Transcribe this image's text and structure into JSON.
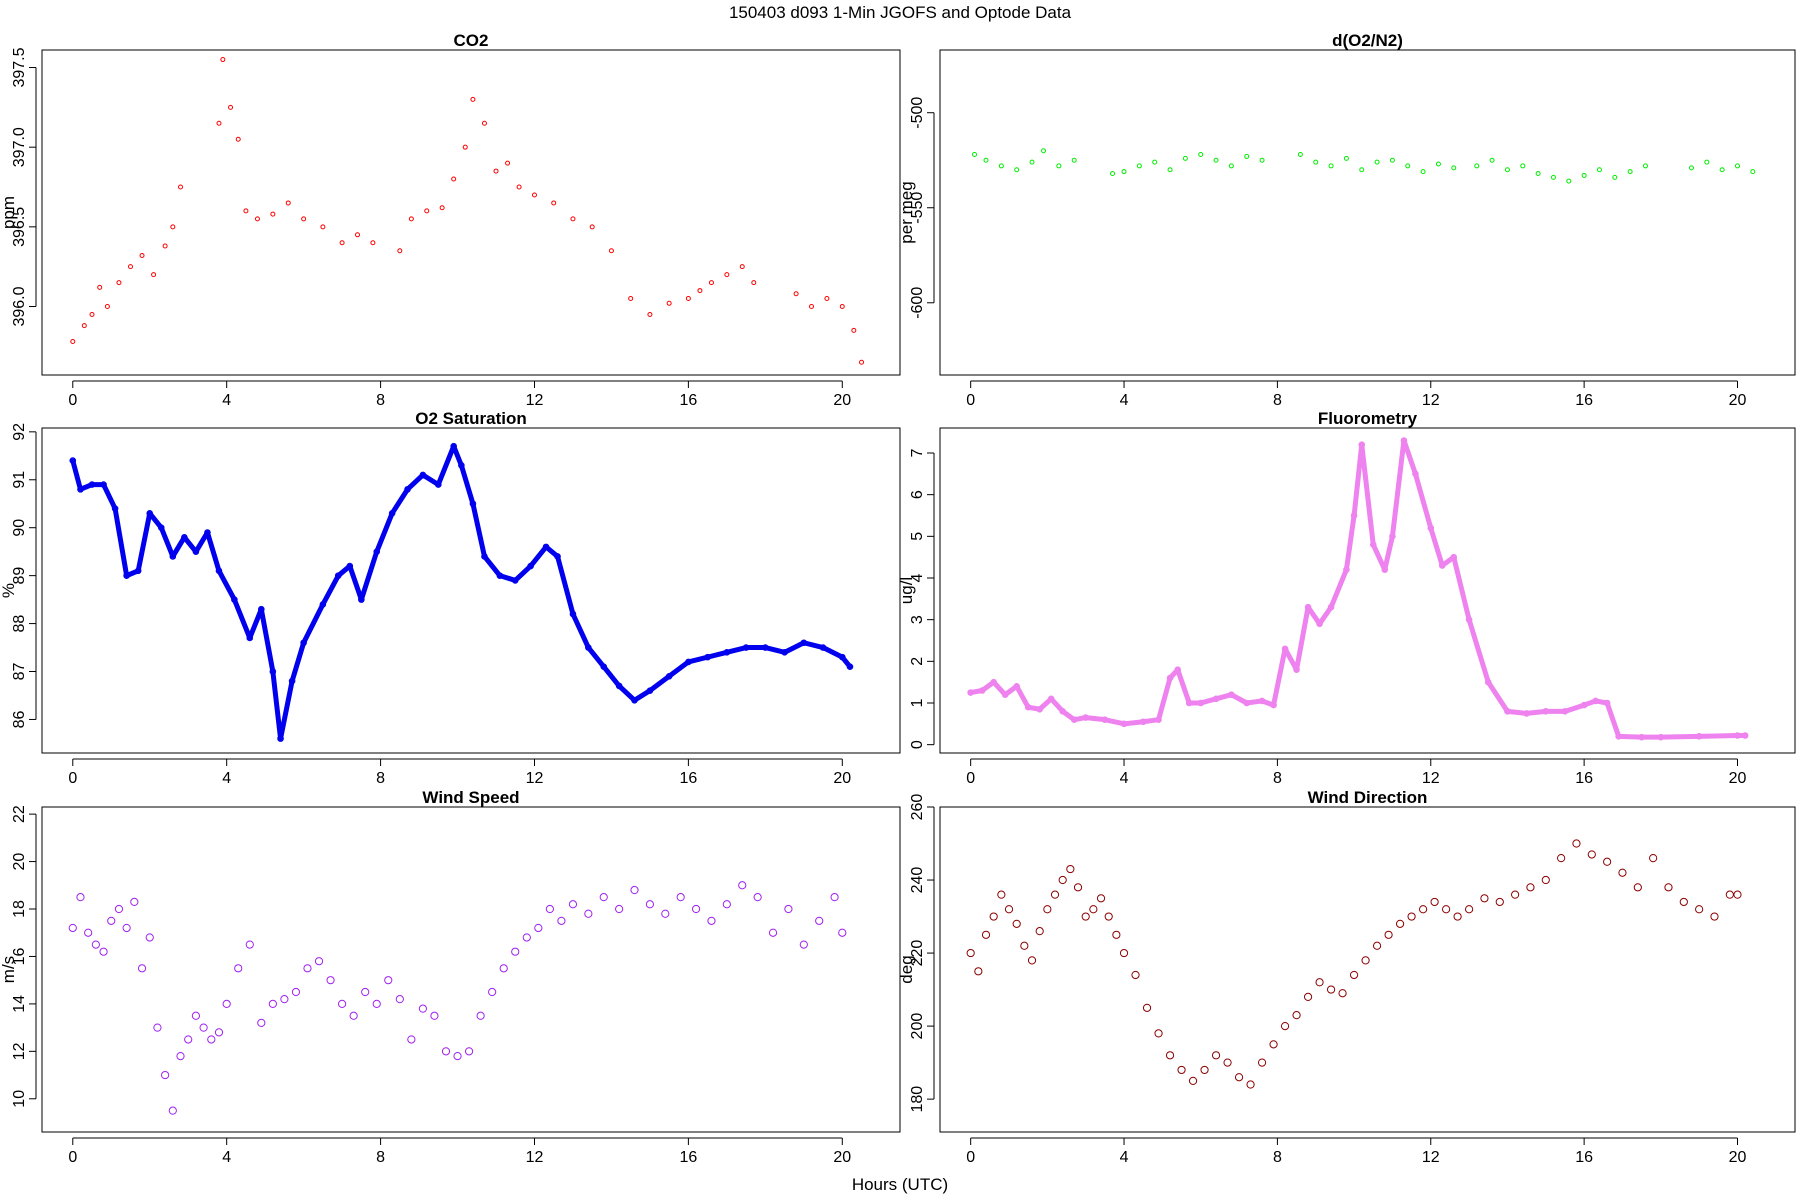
{
  "figure": {
    "title": "150403   d093   1-Min  JGOFS and Optode Data",
    "xlabel": "Hours (UTC)"
  },
  "chart_data": [
    {
      "id": "co2",
      "type": "scatter",
      "title": "CO2",
      "ylabel": "ppm",
      "color": "#ff0000",
      "marker_size": "small",
      "xlim": [
        -0.8,
        21.5
      ],
      "ylim": [
        395.57,
        397.61
      ],
      "xticks": [
        0,
        4,
        8,
        12,
        16,
        20
      ],
      "yticks": [
        396.0,
        396.5,
        397.0,
        397.5
      ],
      "ytick_labels": [
        "396.0",
        "396.5",
        "397.0",
        "397.5"
      ],
      "rotate_ytick_labels": true,
      "series": [
        {
          "x": [
            0.0,
            0.3,
            0.5,
            0.7,
            0.9,
            1.2,
            1.5,
            1.8,
            2.1,
            2.4,
            2.6,
            2.8,
            3.8,
            3.9,
            4.1,
            4.3,
            4.5,
            4.8,
            5.2,
            5.6,
            6.0,
            6.5,
            7.0,
            7.4,
            7.8,
            8.5,
            8.8,
            9.2,
            9.6,
            9.9,
            10.2,
            10.4,
            10.7,
            11.0,
            11.3,
            11.6,
            12.0,
            12.5,
            13.0,
            13.5,
            14.0,
            14.5,
            15.0,
            15.5,
            16.0,
            16.3,
            16.6,
            17.0,
            17.4,
            17.7,
            18.8,
            19.2,
            19.6,
            20.0,
            20.3,
            20.5
          ],
          "y": [
            395.78,
            395.88,
            395.95,
            396.12,
            396.0,
            396.15,
            396.25,
            396.32,
            396.2,
            396.38,
            396.5,
            396.75,
            397.15,
            397.55,
            397.25,
            397.05,
            396.6,
            396.55,
            396.58,
            396.65,
            396.55,
            396.5,
            396.4,
            396.45,
            396.4,
            396.35,
            396.55,
            396.6,
            396.62,
            396.8,
            397.0,
            397.3,
            397.15,
            396.85,
            396.9,
            396.75,
            396.7,
            396.65,
            396.55,
            396.5,
            396.35,
            396.05,
            395.95,
            396.02,
            396.05,
            396.1,
            396.15,
            396.2,
            396.25,
            396.15,
            396.08,
            396.0,
            396.05,
            396.0,
            395.85,
            395.65
          ]
        }
      ]
    },
    {
      "id": "do2n2",
      "type": "scatter",
      "title": "d(O2/N2)",
      "ylabel": "per meg",
      "color": "#00ee00",
      "marker_size": "small",
      "xlim": [
        -0.8,
        21.5
      ],
      "ylim": [
        -638,
        -467
      ],
      "xticks": [
        0,
        4,
        8,
        12,
        16,
        20
      ],
      "yticks": [
        -600,
        -550,
        -500
      ],
      "ytick_labels": [
        "-600",
        "-550",
        "-500"
      ],
      "rotate_ytick_labels": true,
      "series": [
        {
          "x": [
            0.1,
            0.4,
            0.8,
            1.2,
            1.6,
            1.9,
            2.3,
            2.7,
            3.7,
            4.0,
            4.4,
            4.8,
            5.2,
            5.6,
            6.0,
            6.4,
            6.8,
            7.2,
            7.6,
            8.6,
            9.0,
            9.4,
            9.8,
            10.2,
            10.6,
            11.0,
            11.4,
            11.8,
            12.2,
            12.6,
            13.2,
            13.6,
            14.0,
            14.4,
            14.8,
            15.2,
            15.6,
            16.0,
            16.4,
            16.8,
            17.2,
            17.6,
            18.8,
            19.2,
            19.6,
            20.0,
            20.4
          ],
          "y": [
            -522,
            -525,
            -528,
            -530,
            -526,
            -520,
            -528,
            -525,
            -532,
            -531,
            -528,
            -526,
            -530,
            -524,
            -522,
            -525,
            -528,
            -523,
            -525,
            -522,
            -526,
            -528,
            -524,
            -530,
            -526,
            -525,
            -528,
            -531,
            -527,
            -529,
            -528,
            -525,
            -530,
            -528,
            -532,
            -534,
            -536,
            -533,
            -530,
            -534,
            -531,
            -528,
            -529,
            -526,
            -530,
            -528,
            -531
          ]
        }
      ]
    },
    {
      "id": "o2sat",
      "type": "line",
      "title": "O2 Saturation",
      "ylabel": "%",
      "color": "#0000ee",
      "xlim": [
        -0.8,
        21.5
      ],
      "ylim": [
        85.3,
        92.08
      ],
      "xticks": [
        0,
        4,
        8,
        12,
        16,
        20
      ],
      "yticks": [
        86,
        87,
        88,
        89,
        90,
        91,
        92
      ],
      "ytick_labels": [
        "86",
        "87",
        "88",
        "89",
        "90",
        "91",
        "92"
      ],
      "rotate_ytick_labels": true,
      "series": [
        {
          "x": [
            0.0,
            0.2,
            0.5,
            0.8,
            1.1,
            1.4,
            1.7,
            2.0,
            2.3,
            2.6,
            2.9,
            3.2,
            3.5,
            3.8,
            4.2,
            4.6,
            4.9,
            5.2,
            5.4,
            5.7,
            6.0,
            6.5,
            6.9,
            7.2,
            7.5,
            7.9,
            8.3,
            8.7,
            9.1,
            9.5,
            9.9,
            10.1,
            10.4,
            10.7,
            11.1,
            11.5,
            11.9,
            12.3,
            12.6,
            13.0,
            13.4,
            13.8,
            14.2,
            14.6,
            15.0,
            15.5,
            16.0,
            16.5,
            17.0,
            17.5,
            18.0,
            18.5,
            19.0,
            19.5,
            20.0,
            20.2
          ],
          "y": [
            91.4,
            90.8,
            90.9,
            90.9,
            90.4,
            89.0,
            89.1,
            90.3,
            90.0,
            89.4,
            89.8,
            89.5,
            89.9,
            89.1,
            88.5,
            87.7,
            88.3,
            87.0,
            85.6,
            86.8,
            87.6,
            88.4,
            89.0,
            89.2,
            88.5,
            89.5,
            90.3,
            90.8,
            91.1,
            90.9,
            91.7,
            91.3,
            90.5,
            89.4,
            89.0,
            88.9,
            89.2,
            89.6,
            89.4,
            88.2,
            87.5,
            87.1,
            86.7,
            86.4,
            86.6,
            86.9,
            87.2,
            87.3,
            87.4,
            87.5,
            87.5,
            87.4,
            87.6,
            87.5,
            87.3,
            87.1
          ]
        }
      ]
    },
    {
      "id": "fluor",
      "type": "line",
      "title": "Fluorometry",
      "ylabel": "ug/l",
      "color": "#ee82ee",
      "xlim": [
        -0.8,
        21.5
      ],
      "ylim": [
        -0.2,
        7.6
      ],
      "xticks": [
        0,
        4,
        8,
        12,
        16,
        20
      ],
      "yticks": [
        0,
        1,
        2,
        3,
        4,
        5,
        6,
        7
      ],
      "ytick_labels": [
        "0",
        "1",
        "2",
        "3",
        "4",
        "5",
        "6",
        "7"
      ],
      "rotate_ytick_labels": true,
      "series": [
        {
          "x": [
            0.0,
            0.3,
            0.6,
            0.9,
            1.2,
            1.5,
            1.8,
            2.1,
            2.4,
            2.7,
            3.0,
            3.5,
            4.0,
            4.5,
            4.9,
            5.2,
            5.4,
            5.7,
            6.0,
            6.4,
            6.8,
            7.2,
            7.6,
            7.9,
            8.2,
            8.5,
            8.8,
            9.1,
            9.4,
            9.8,
            10.0,
            10.2,
            10.5,
            10.8,
            11.0,
            11.3,
            11.6,
            12.0,
            12.3,
            12.6,
            13.0,
            13.5,
            14.0,
            14.5,
            15.0,
            15.5,
            16.0,
            16.3,
            16.6,
            16.9,
            17.5,
            18.0,
            19.0,
            20.0,
            20.2
          ],
          "y": [
            1.25,
            1.3,
            1.5,
            1.2,
            1.4,
            0.9,
            0.85,
            1.1,
            0.8,
            0.6,
            0.65,
            0.6,
            0.5,
            0.55,
            0.6,
            1.6,
            1.8,
            1.0,
            1.0,
            1.1,
            1.2,
            1.0,
            1.05,
            0.95,
            2.3,
            1.8,
            3.3,
            2.9,
            3.3,
            4.2,
            5.5,
            7.2,
            4.8,
            4.2,
            5.0,
            7.3,
            6.5,
            5.2,
            4.3,
            4.5,
            3.0,
            1.5,
            0.8,
            0.75,
            0.8,
            0.8,
            0.95,
            1.05,
            1.0,
            0.2,
            0.18,
            0.18,
            0.2,
            0.22,
            0.22
          ]
        }
      ]
    },
    {
      "id": "windspeed",
      "type": "scatter",
      "title": "Wind Speed",
      "ylabel": "m/s",
      "color": "#a020f0",
      "marker_size": "large",
      "xlim": [
        -0.8,
        21.5
      ],
      "ylim": [
        8.6,
        22.3
      ],
      "xticks": [
        0,
        4,
        8,
        12,
        16,
        20
      ],
      "yticks": [
        10,
        12,
        14,
        16,
        18,
        20,
        22
      ],
      "ytick_labels": [
        "10",
        "12",
        "14",
        "16",
        "18",
        "20",
        "22"
      ],
      "rotate_ytick_labels": true,
      "series": [
        {
          "x": [
            0.0,
            0.2,
            0.4,
            0.6,
            0.8,
            1.0,
            1.2,
            1.4,
            1.6,
            1.8,
            2.0,
            2.2,
            2.4,
            2.6,
            2.8,
            3.0,
            3.2,
            3.4,
            3.6,
            3.8,
            4.0,
            4.3,
            4.6,
            4.9,
            5.2,
            5.5,
            5.8,
            6.1,
            6.4,
            6.7,
            7.0,
            7.3,
            7.6,
            7.9,
            8.2,
            8.5,
            8.8,
            9.1,
            9.4,
            9.7,
            10.0,
            10.3,
            10.6,
            10.9,
            11.2,
            11.5,
            11.8,
            12.1,
            12.4,
            12.7,
            13.0,
            13.4,
            13.8,
            14.2,
            14.6,
            15.0,
            15.4,
            15.8,
            16.2,
            16.6,
            17.0,
            17.4,
            17.8,
            18.2,
            18.6,
            19.0,
            19.4,
            19.8,
            20.0
          ],
          "y": [
            17.2,
            18.5,
            17.0,
            16.5,
            16.2,
            17.5,
            18.0,
            17.2,
            18.3,
            15.5,
            16.8,
            13.0,
            11.0,
            9.5,
            11.8,
            12.5,
            13.5,
            13.0,
            12.5,
            12.8,
            14.0,
            15.5,
            16.5,
            13.2,
            14.0,
            14.2,
            14.5,
            15.5,
            15.8,
            15.0,
            14.0,
            13.5,
            14.5,
            14.0,
            15.0,
            14.2,
            12.5,
            13.8,
            13.5,
            12.0,
            11.8,
            12.0,
            13.5,
            14.5,
            15.5,
            16.2,
            16.8,
            17.2,
            18.0,
            17.5,
            18.2,
            17.8,
            18.5,
            18.0,
            18.8,
            18.2,
            17.8,
            18.5,
            18.0,
            17.5,
            18.2,
            19.0,
            18.5,
            17.0,
            18.0,
            16.5,
            17.5,
            18.5,
            17.0
          ]
        }
      ]
    },
    {
      "id": "winddir",
      "type": "scatter",
      "title": "Wind Direction",
      "ylabel": "deg",
      "color": "#8b0000",
      "marker_size": "large",
      "xlim": [
        -0.8,
        21.5
      ],
      "ylim": [
        171,
        260
      ],
      "xticks": [
        0,
        4,
        8,
        12,
        16,
        20
      ],
      "yticks": [
        180,
        200,
        220,
        240,
        260
      ],
      "ytick_labels": [
        "180",
        "200",
        "220",
        "240",
        "260"
      ],
      "rotate_ytick_labels": true,
      "series": [
        {
          "x": [
            0.0,
            0.2,
            0.4,
            0.6,
            0.8,
            1.0,
            1.2,
            1.4,
            1.6,
            1.8,
            2.0,
            2.2,
            2.4,
            2.6,
            2.8,
            3.0,
            3.2,
            3.4,
            3.6,
            3.8,
            4.0,
            4.3,
            4.6,
            4.9,
            5.2,
            5.5,
            5.8,
            6.1,
            6.4,
            6.7,
            7.0,
            7.3,
            7.6,
            7.9,
            8.2,
            8.5,
            8.8,
            9.1,
            9.4,
            9.7,
            10.0,
            10.3,
            10.6,
            10.9,
            11.2,
            11.5,
            11.8,
            12.1,
            12.4,
            12.7,
            13.0,
            13.4,
            13.8,
            14.2,
            14.6,
            15.0,
            15.4,
            15.8,
            16.2,
            16.6,
            17.0,
            17.4,
            17.8,
            18.2,
            18.6,
            19.0,
            19.4,
            19.8,
            20.0
          ],
          "y": [
            220,
            215,
            225,
            230,
            236,
            232,
            228,
            222,
            218,
            226,
            232,
            236,
            240,
            243,
            238,
            230,
            232,
            235,
            230,
            225,
            220,
            214,
            205,
            198,
            192,
            188,
            185,
            188,
            192,
            190,
            186,
            184,
            190,
            195,
            200,
            203,
            208,
            212,
            210,
            209,
            214,
            218,
            222,
            225,
            228,
            230,
            232,
            234,
            232,
            230,
            232,
            235,
            234,
            236,
            238,
            240,
            246,
            250,
            247,
            245,
            242,
            238,
            246,
            238,
            234,
            232,
            230,
            236,
            236
          ]
        }
      ]
    }
  ]
}
